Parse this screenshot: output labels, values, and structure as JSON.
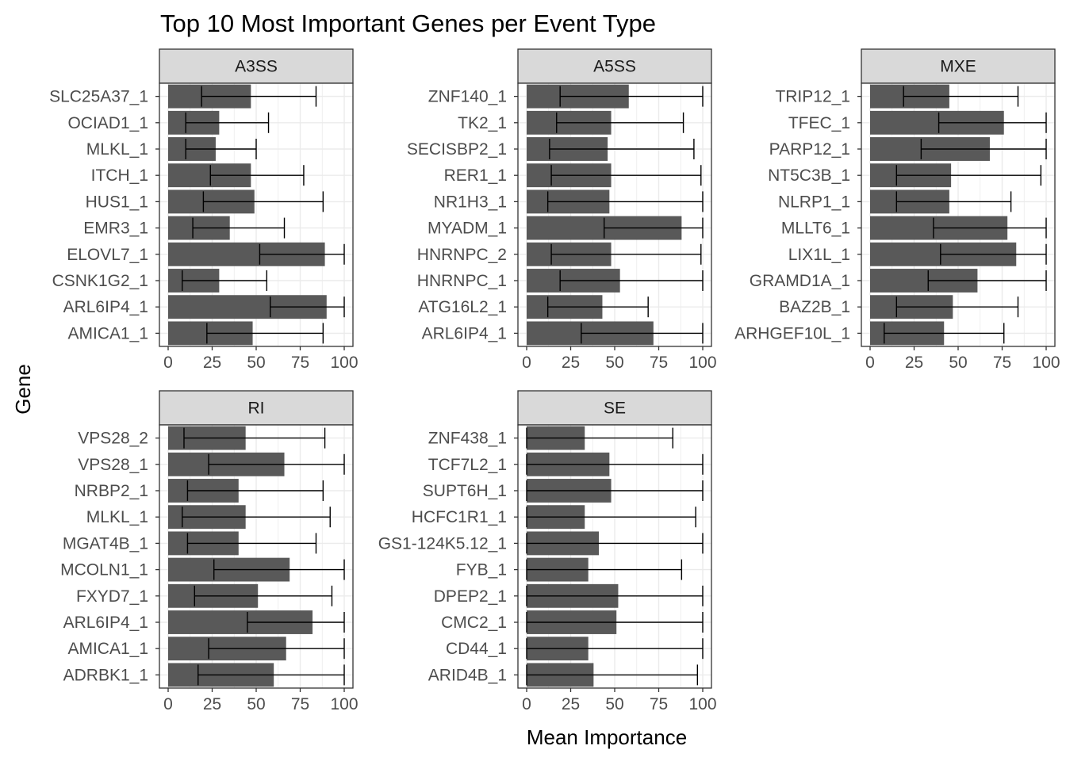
{
  "chart_data": {
    "type": "bar",
    "title": "Top 10 Most Important Genes per Event Type",
    "xlabel": "Mean Importance",
    "ylabel": "Gene",
    "xlim": [
      0,
      100
    ],
    "x_ticks": [
      0,
      25,
      50,
      75,
      100
    ],
    "grid": true,
    "colors": {
      "bar": "#595959",
      "strip_bg": "#d9d9d9",
      "grid": "#ebebeb",
      "border": "#333333",
      "errorbar": "#000000"
    },
    "panels": [
      {
        "name": "A3SS",
        "categories": [
          "SLC25A37_1",
          "OCIAD1_1",
          "MLKL_1",
          "ITCH_1",
          "HUS1_1",
          "EMR3_1",
          "ELOVL7_1",
          "CSNK1G2_1",
          "ARL6IP4_1",
          "AMICA1_1"
        ],
        "values": [
          47,
          29,
          27,
          47,
          49,
          35,
          89,
          29,
          90,
          48
        ],
        "err_low": [
          19,
          10,
          10,
          24,
          20,
          14,
          52,
          8,
          58,
          22
        ],
        "err_high": [
          84,
          57,
          50,
          77,
          88,
          66,
          100,
          56,
          100,
          88
        ]
      },
      {
        "name": "A5SS",
        "categories": [
          "ZNF140_1",
          "TK2_1",
          "SECISBP2_1",
          "RER1_1",
          "NR1H3_1",
          "MYADM_1",
          "HNRNPC_2",
          "HNRNPC_1",
          "ATG16L2_1",
          "ARL6IP4_1"
        ],
        "values": [
          58,
          48,
          46,
          48,
          47,
          88,
          48,
          53,
          43,
          72
        ],
        "err_low": [
          19,
          17,
          13,
          14,
          12,
          44,
          14,
          19,
          12,
          31
        ],
        "err_high": [
          100,
          89,
          95,
          99,
          100,
          100,
          99,
          100,
          69,
          100
        ]
      },
      {
        "name": "MXE",
        "categories": [
          "TRIP12_1",
          "TFEC_1",
          "PARP12_1",
          "NT5C3B_1",
          "NLRP1_1",
          "MLLT6_1",
          "LIX1L_1",
          "GRAMD1A_1",
          "BAZ2B_1",
          "ARHGEF10L_1"
        ],
        "values": [
          45,
          76,
          68,
          46,
          45,
          78,
          83,
          61,
          47,
          42
        ],
        "err_low": [
          19,
          39,
          29,
          15,
          15,
          36,
          40,
          33,
          15,
          8
        ],
        "err_high": [
          84,
          100,
          100,
          97,
          80,
          100,
          100,
          100,
          84,
          76
        ]
      },
      {
        "name": "RI",
        "categories": [
          "VPS28_2",
          "VPS28_1",
          "NRBP2_1",
          "MLKL_1",
          "MGAT4B_1",
          "MCOLN1_1",
          "FXYD7_1",
          "ARL6IP4_1",
          "AMICA1_1",
          "ADRBK1_1"
        ],
        "values": [
          44,
          66,
          40,
          44,
          40,
          69,
          51,
          82,
          67,
          60
        ],
        "err_low": [
          9,
          23,
          11,
          8,
          11,
          26,
          15,
          45,
          23,
          17
        ],
        "err_high": [
          89,
          100,
          88,
          92,
          84,
          100,
          93,
          100,
          100,
          100
        ]
      },
      {
        "name": "SE",
        "categories": [
          "ZNF438_1",
          "TCF7L2_1",
          "SUPT6H_1",
          "HCFC1R1_1",
          "GS1-124K5.12_1",
          "FYB_1",
          "DPEP2_1",
          "CMC2_1",
          "CD44_1",
          "ARID4B_1"
        ],
        "values": [
          33,
          47,
          48,
          33,
          41,
          35,
          52,
          51,
          35,
          38
        ],
        "err_low": [
          0,
          0,
          0,
          0,
          0,
          0,
          0,
          0,
          0,
          0
        ],
        "err_high": [
          83,
          100,
          100,
          96,
          100,
          88,
          100,
          100,
          100,
          97
        ]
      }
    ]
  }
}
